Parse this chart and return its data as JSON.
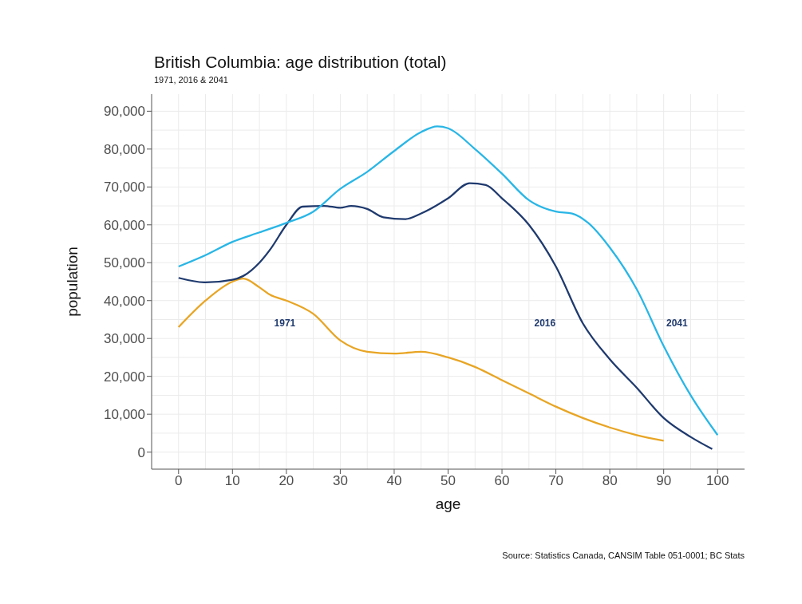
{
  "chart_data": {
    "type": "line",
    "title": "British Columbia: age distribution (total)",
    "subtitle": "1971, 2016 & 2041",
    "xlabel": "age",
    "ylabel": "population",
    "xlim": [
      -5,
      105
    ],
    "xticks": [
      0,
      10,
      20,
      30,
      40,
      50,
      60,
      70,
      80,
      90,
      100
    ],
    "ylim": [
      -4500,
      94500
    ],
    "yticks": [
      {
        "value": 0,
        "label": "0"
      },
      {
        "value": 10000,
        "label": "10,000"
      },
      {
        "value": 20000,
        "label": "20,000"
      },
      {
        "value": 30000,
        "label": "30,000"
      },
      {
        "value": 40000,
        "label": "40,000"
      },
      {
        "value": 50000,
        "label": "50,000"
      },
      {
        "value": 60000,
        "label": "60,000"
      },
      {
        "value": 70000,
        "label": "70,000"
      },
      {
        "value": 80000,
        "label": "80,000"
      },
      {
        "value": 90000,
        "label": "90,000"
      }
    ],
    "grid": true,
    "legend": false,
    "marker": "none",
    "line_style": "solid",
    "series": [
      {
        "name": "1971",
        "color": "#e8a524",
        "x": [
          0,
          5,
          10,
          12,
          15,
          17,
          20,
          25,
          30,
          35,
          40,
          45,
          50,
          55,
          60,
          65,
          70,
          75,
          80,
          85,
          90
        ],
        "values": [
          33000,
          40000,
          45000,
          45800,
          43500,
          41500,
          40000,
          36500,
          29500,
          26500,
          26000,
          26500,
          25000,
          22500,
          19000,
          15500,
          12000,
          9000,
          6500,
          4500,
          3000
        ]
      },
      {
        "name": "2016",
        "color": "#1f3a6e",
        "x": [
          0,
          5,
          10,
          12,
          15,
          17,
          20,
          23,
          27,
          30,
          32,
          35,
          38,
          42,
          45,
          50,
          54,
          57,
          60,
          65,
          70,
          75,
          80,
          85,
          90,
          95,
          99
        ],
        "values": [
          46000,
          44800,
          45500,
          46500,
          50000,
          53500,
          60000,
          64800,
          65000,
          64500,
          65000,
          64200,
          62000,
          61500,
          63000,
          67000,
          71000,
          70500,
          67000,
          60000,
          49000,
          34000,
          24500,
          17000,
          9000,
          4000,
          800
        ]
      },
      {
        "name": "2041",
        "color": "#29b6e6",
        "x": [
          0,
          5,
          10,
          15,
          20,
          25,
          30,
          35,
          40,
          45,
          48,
          50,
          55,
          60,
          65,
          70,
          73,
          76,
          80,
          85,
          90,
          95,
          100
        ],
        "values": [
          49000,
          52000,
          55500,
          58000,
          60500,
          63500,
          69500,
          74000,
          79500,
          84500,
          86000,
          85500,
          80000,
          73500,
          66500,
          63500,
          63000,
          60500,
          54000,
          43000,
          28000,
          15000,
          4500
        ]
      }
    ],
    "annotations": [
      "Source: Statistics Canada, CANSIM Table 051-0001; BC Stats"
    ]
  }
}
